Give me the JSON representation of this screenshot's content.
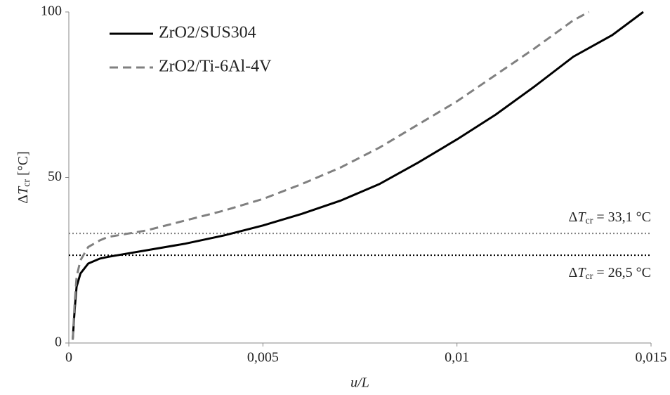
{
  "chart_data": {
    "type": "line",
    "x_label": "u/L",
    "y_label": [
      "Δ",
      "T",
      "cr",
      " [°C]"
    ],
    "xlim": [
      0,
      0.015
    ],
    "xticks": [
      0,
      {
        "value": 0.005,
        "label": "0,005"
      },
      {
        "value": 0.01,
        "label": "0,01"
      },
      {
        "value": 0.015,
        "label": "0,015"
      }
    ],
    "ylim": [
      0,
      100
    ],
    "yticks": [
      0,
      50,
      100
    ],
    "legend": "top-left",
    "series": [
      {
        "name": "ZrO2/SUS304",
        "color": "#000000",
        "dash": "solid",
        "x": [
          0.0001,
          0.00015,
          0.0002,
          0.0003,
          0.0005,
          0.0008,
          0.001,
          0.0015,
          0.002,
          0.003,
          0.004,
          0.005,
          0.006,
          0.007,
          0.008,
          0.009,
          0.01,
          0.011,
          0.012,
          0.013,
          0.014,
          0.0148
        ],
        "values": [
          1,
          10,
          17,
          21,
          24,
          25.5,
          26,
          27,
          28,
          30,
          32.5,
          35.5,
          39,
          43,
          48,
          54.5,
          61.5,
          69,
          77.5,
          86.5,
          93,
          100
        ]
      },
      {
        "name": "ZrO2/Ti-6Al-4V",
        "color": "#808080",
        "dash": "dashed",
        "x": [
          0.0001,
          0.00015,
          0.0002,
          0.0003,
          0.0005,
          0.0008,
          0.001,
          0.0015,
          0.002,
          0.003,
          0.004,
          0.005,
          0.006,
          0.007,
          0.008,
          0.009,
          0.01,
          0.011,
          0.012,
          0.013,
          0.0134
        ],
        "values": [
          1,
          12,
          20,
          25,
          29,
          31,
          32,
          33,
          34,
          37,
          40,
          43.5,
          48,
          53,
          59,
          66,
          73,
          81,
          89,
          97.5,
          100
        ]
      }
    ],
    "reference_lines": [
      {
        "value": 33.1,
        "color": "#808080",
        "label": [
          "Δ",
          "T",
          "cr",
          " = 33,1 °C"
        ]
      },
      {
        "value": 26.5,
        "color": "#000000",
        "label": [
          "Δ",
          "T",
          "cr",
          " = 26,5 °C"
        ]
      }
    ]
  }
}
